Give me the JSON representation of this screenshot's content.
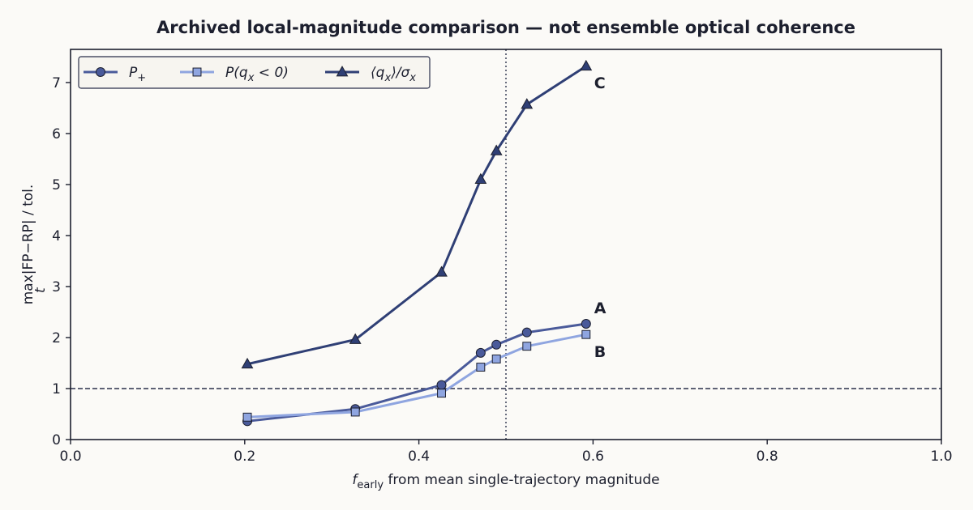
{
  "chart_data": {
    "type": "line",
    "title": "Archived local-magnitude comparison — not ensemble optical coherence",
    "xlabel_main": "f",
    "xlabel_sub": "early",
    "xlabel_rest": " from mean single-trajectory magnitude",
    "ylabel_pre": "max",
    "ylabel_sub": "t",
    "ylabel_rest": "|FP−RP| / tol.",
    "xlim": [
      0.0,
      1.0
    ],
    "ylim": [
      0,
      7.65
    ],
    "xticks": [
      "0.0",
      "0.2",
      "0.4",
      "0.6",
      "0.8",
      "1.0"
    ],
    "xtick_values": [
      0.0,
      0.2,
      0.4,
      0.6,
      0.8,
      1.0
    ],
    "yticks": [
      "0",
      "1",
      "2",
      "3",
      "4",
      "5",
      "6",
      "7"
    ],
    "ytick_values": [
      0,
      1,
      2,
      3,
      4,
      5,
      6,
      7
    ],
    "hline": 1.0,
    "vline": 0.5,
    "legend_position": "upper-left",
    "series": [
      {
        "name": "P+",
        "legend_main": "P",
        "legend_sub": "+",
        "marker": "circle",
        "color": "#4a5a9a",
        "x": [
          0.203,
          0.327,
          0.426,
          0.471,
          0.489,
          0.524,
          0.592
        ],
        "y": [
          0.36,
          0.6,
          1.07,
          1.7,
          1.86,
          2.1,
          2.27
        ],
        "label": "A"
      },
      {
        "name": "P(qx < 0)",
        "legend_main": "P(q",
        "legend_sub": "x",
        "legend_rest": " < 0)",
        "marker": "square",
        "color": "#8fa5e0",
        "x": [
          0.203,
          0.327,
          0.426,
          0.471,
          0.489,
          0.524,
          0.592
        ],
        "y": [
          0.44,
          0.54,
          0.91,
          1.42,
          1.58,
          1.83,
          2.06
        ],
        "label": "B"
      },
      {
        "name": "⟨qx⟩/σx",
        "legend_main": "⟨q",
        "legend_sub": "x",
        "legend_rest": "⟩/σ",
        "legend_sub2": "x",
        "marker": "triangle",
        "color": "#2f3f75",
        "x": [
          0.203,
          0.327,
          0.426,
          0.471,
          0.489,
          0.524,
          0.592
        ],
        "y": [
          1.48,
          1.96,
          3.28,
          5.1,
          5.66,
          6.57,
          7.32
        ],
        "label": "C"
      }
    ]
  }
}
